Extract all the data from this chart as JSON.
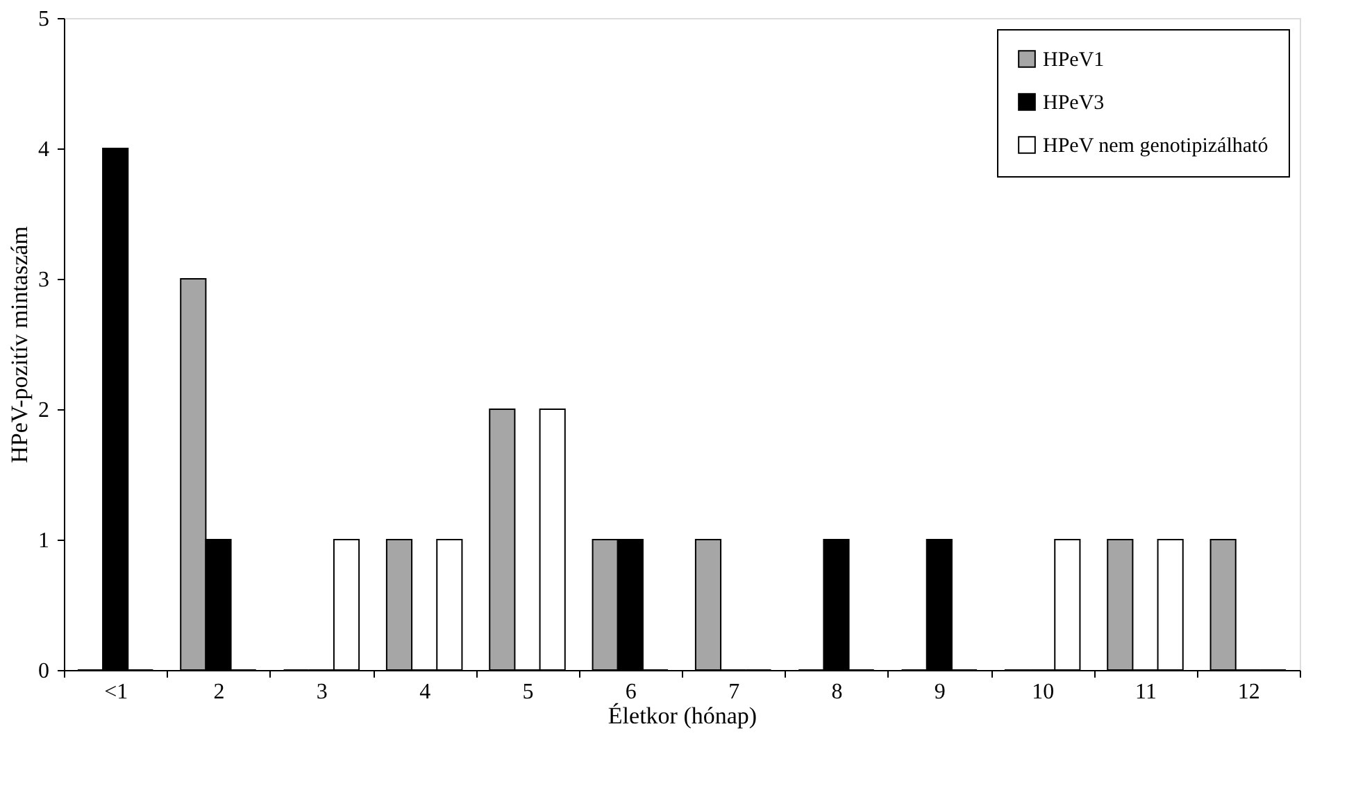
{
  "chart_data": {
    "type": "bar",
    "xlabel": "Életkor (hónap)",
    "ylabel": "HPeV-pozitív mintaszám",
    "categories": [
      "<1",
      "2",
      "3",
      "4",
      "5",
      "6",
      "7",
      "8",
      "9",
      "10",
      "11",
      "12"
    ],
    "series": [
      {
        "name": "HPeV1",
        "color": "#a6a6a6",
        "values": [
          0,
          3,
          0,
          1,
          2,
          1,
          1,
          0,
          0,
          0,
          1,
          1
        ]
      },
      {
        "name": "HPeV3",
        "color": "#000000",
        "values": [
          4,
          1,
          0,
          0,
          0,
          1,
          0,
          1,
          1,
          0,
          0,
          0
        ]
      },
      {
        "name": "HPeV nem genotipizálható",
        "color": "#ffffff",
        "values": [
          0,
          0,
          1,
          1,
          2,
          0,
          0,
          0,
          0,
          1,
          1,
          0
        ]
      }
    ],
    "ylim": [
      0,
      5
    ],
    "yticks": [
      0,
      1,
      2,
      3,
      4,
      5
    ],
    "grid": false,
    "legend": "top right"
  }
}
